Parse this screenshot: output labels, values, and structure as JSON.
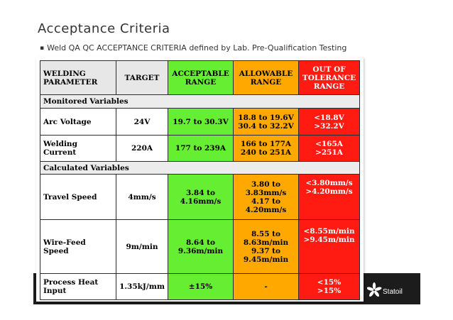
{
  "slide": {
    "title": "Acceptance Criteria",
    "bullet": "Weld QA QC ACCEPTANCE CRITERIA defined by Lab. Pre-Qualification Testing"
  },
  "colors": {
    "acceptable": "#66ee33",
    "allowable": "#ffa800",
    "out_of_tolerance": "#ff1a12",
    "header_bg": "#e7e7e7"
  },
  "table": {
    "headers": {
      "param": [
        "WELDING",
        "PARAMETER"
      ],
      "target": "TARGET",
      "acceptable": [
        "ACCEPTABLE",
        "RANGE"
      ],
      "allowable": [
        "ALLOWABLE",
        "RANGE"
      ],
      "out": [
        "OUT OF",
        "TOLERANCE",
        "RANGE"
      ]
    },
    "sections": {
      "monitored": "Monitored Variables",
      "calculated": "Calculated Variables"
    },
    "rows": {
      "arc_voltage": {
        "label": [
          "Arc Voltage"
        ],
        "target": "24V",
        "acceptable": [
          "19.7 to 30.3V"
        ],
        "allowable": [
          "18.8 to 19.6V",
          "30.4 to 32.2V"
        ],
        "out": [
          "<18.8V",
          ">32.2V"
        ]
      },
      "welding_current": {
        "label": [
          "Welding",
          "Current"
        ],
        "target": "220A",
        "acceptable": [
          "177 to 239A"
        ],
        "allowable": [
          "166 to 177A",
          "240 to 251A"
        ],
        "out": [
          "<165A",
          ">251A"
        ]
      },
      "travel_speed": {
        "label": [
          "Travel Speed"
        ],
        "target": "4mm/s",
        "acceptable": [
          "3.84 to",
          "4.16mm/s"
        ],
        "allowable": [
          "3.80 to",
          "3.83mm/s",
          "4.17 to",
          "4.20mm/s"
        ],
        "out": [
          "<3.80mm/s",
          ">4.20mm/s"
        ]
      },
      "wire_feed_speed": {
        "label": [
          "Wire-Feed",
          "Speed"
        ],
        "target": "9m/min",
        "acceptable": [
          "8.64 to",
          "9.36m/min"
        ],
        "allowable": [
          "8.55 to",
          "8.63m/min",
          "9.37 to",
          "9.45m/min"
        ],
        "out": [
          "<8.55m/min",
          ">9.45m/min"
        ]
      },
      "process_heat_input": {
        "label": [
          "Process Heat",
          "Input"
        ],
        "target": "1.35kJ/mm",
        "acceptable": [
          "±15%"
        ],
        "allowable": [
          "-"
        ],
        "out": [
          "<15%",
          ">15%"
        ]
      }
    }
  },
  "footer": {
    "logo_text": "Statoil",
    "logo_icon": "statoil-star-icon"
  }
}
